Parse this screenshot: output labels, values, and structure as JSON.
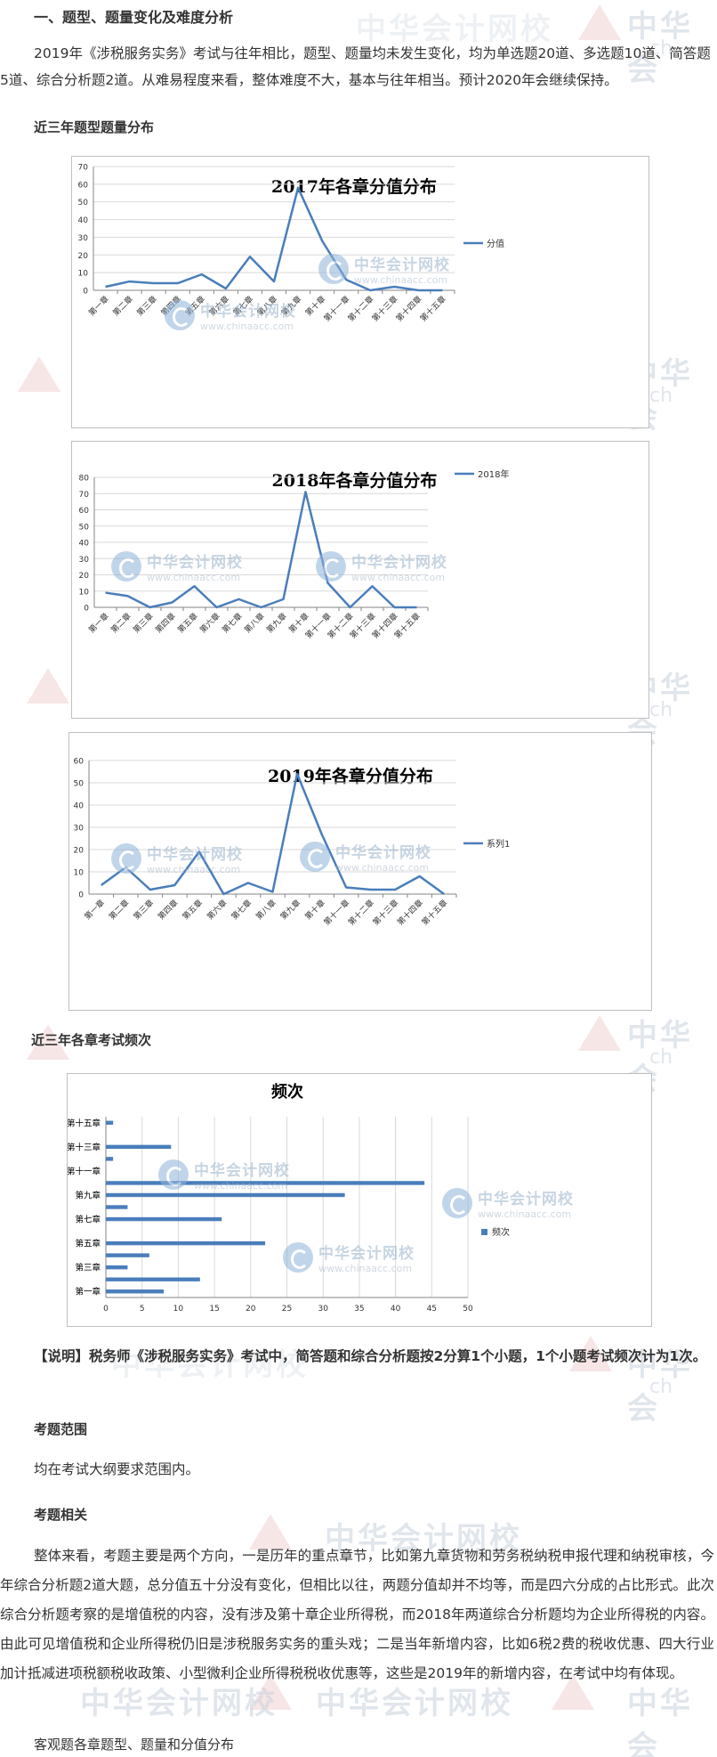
{
  "section_title": "一、题型、题量变化及难度分析",
  "intro_paragraph": "2019年《涉税服务实务》考试与往年相比，题型、题量均未发生变化，均为单选题20道、多选题10道、简答题5道、综合分析题2道。从难易程度来看，整体难度不大，基本与往年相当。预计2020年会继续保持。",
  "dist_heading": "近三年题型题量分布",
  "freq_heading": "近三年各章考试频次",
  "note_paragraph": "【说明】税务师《涉税服务实务》考试中，简答题和综合分析题按2分算1个小题，1个小题考试频次计为1次。",
  "scope_heading": "考题范围",
  "scope_text": "均在考试大纲要求范围内。",
  "related_heading": "考题相关",
  "related_paragraph": "整体来看，考题主要是两个方向，一是历年的重点章节，比如第九章货物和劳务税纳税申报代理和纳税审核，今年综合分析题2道大题，总分值五十分没有变化，但相比以往，两题分值却并不均等，而是四六分成的占比形式。此次综合分析题考察的是增值税的内容，没有涉及第十章企业所得税，而2018年两道综合分析题均为企业所得税的内容。由此可见增值税和企业所得税仍旧是涉税服务实务的重头戏；二是当年新增内容，比如6税2费的税收优惠、四大行业加计抵减进项税额税收政策、小型微利企业所得税税收优惠等，这些是2019年的新增内容，在考试中均有体现。",
  "footer_heading": "客观题各章题型、题量和分值分布",
  "watermark": {
    "name": "中华会计网校",
    "url": "www.chinaacc.com",
    "edge_cn": "中华会",
    "edge_en": "ch"
  },
  "colors": {
    "series": "#4a7ebb",
    "grid": "#d9d9d9",
    "axis": "#868686"
  },
  "chart_data": [
    {
      "type": "line",
      "title": "2017年各章分值分布",
      "categories": [
        "第一章",
        "第二章",
        "第三章",
        "第四章",
        "第五章",
        "第六章",
        "第七章",
        "第八章",
        "第九章",
        "第十章",
        "第十一章",
        "第十二章",
        "第十三章",
        "第十四章",
        "第十五章"
      ],
      "series": [
        {
          "name": "分值",
          "values": [
            2,
            5,
            4,
            4,
            9,
            1,
            19,
            5,
            58,
            28,
            6,
            0,
            2,
            0,
            0
          ]
        }
      ],
      "ylim": [
        0,
        70
      ],
      "yticks": [
        0,
        10,
        20,
        30,
        40,
        50,
        60,
        70
      ],
      "grid": true,
      "legend": "right"
    },
    {
      "type": "line",
      "title": "2018年各章分值分布",
      "categories": [
        "第一章",
        "第二章",
        "第三章",
        "第四章",
        "第五章",
        "第六章",
        "第七章",
        "第八章",
        "第九章",
        "第十章",
        "第十一章",
        "第十二章",
        "第十三章",
        "第十四章",
        "第十五章"
      ],
      "series": [
        {
          "name": "2018年",
          "values": [
            9,
            7,
            0,
            3,
            13,
            0,
            5,
            0,
            5,
            71,
            15,
            0,
            13,
            0,
            0
          ]
        }
      ],
      "ylim": [
        0,
        80
      ],
      "yticks": [
        0,
        10,
        20,
        30,
        40,
        50,
        60,
        70,
        80
      ],
      "grid": true,
      "legend": "right"
    },
    {
      "type": "line",
      "title": "2019年各章分值分布",
      "categories": [
        "第一章",
        "第二章",
        "第三章",
        "第四章",
        "第五章",
        "第六章",
        "第七章",
        "第八章",
        "第九章",
        "第十章",
        "第十一章",
        "第十二章",
        "第十三章",
        "第十四章",
        "第十五章"
      ],
      "series": [
        {
          "name": "系列1",
          "values": [
            4,
            12,
            2,
            4,
            19,
            0,
            5,
            1,
            54,
            27,
            3,
            2,
            2,
            8,
            0
          ]
        }
      ],
      "ylim": [
        0,
        60
      ],
      "yticks": [
        0,
        10,
        20,
        30,
        40,
        50,
        60
      ],
      "grid": true,
      "legend": "right"
    },
    {
      "type": "bar",
      "orientation": "horizontal",
      "title": "频次",
      "categories": [
        "第一章",
        "第二章",
        "第三章",
        "第四章",
        "第五章",
        "第六章",
        "第七章",
        "第八章",
        "第九章",
        "第十章",
        "第十一章",
        "第十二章",
        "第十三章",
        "第十四章",
        "第十五章"
      ],
      "visible_category_labels": [
        "第一章",
        "第三章",
        "第五章",
        "第七章",
        "第九章",
        "第十一章",
        "第十三章",
        "第十五章"
      ],
      "series": [
        {
          "name": "频次",
          "values": [
            8,
            13,
            3,
            6,
            22,
            0,
            16,
            3,
            33,
            44,
            0,
            1,
            9,
            0,
            1
          ]
        }
      ],
      "xlim": [
        0,
        50
      ],
      "xticks": [
        0,
        5,
        10,
        15,
        20,
        25,
        30,
        35,
        40,
        45,
        50
      ],
      "grid": true,
      "legend": "right"
    }
  ]
}
